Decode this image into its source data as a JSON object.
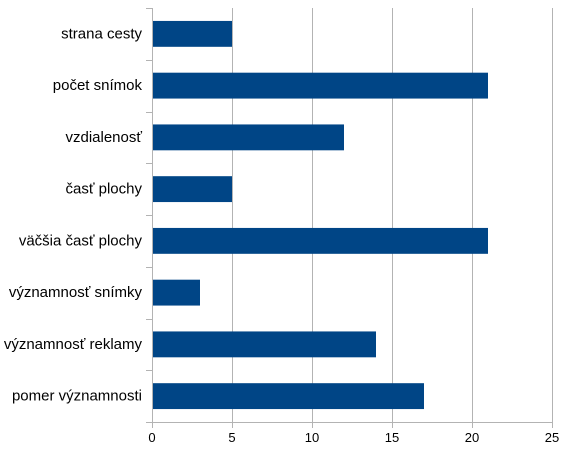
{
  "chart_data": {
    "type": "bar",
    "orientation": "horizontal",
    "categories": [
      "strana cesty",
      "počet snímok",
      "vzdialenosť",
      "časť plochy",
      "väčšia časť plochy",
      "významnosť snímky",
      "významnosť reklamy",
      "pomer významnosti"
    ],
    "values": [
      5,
      21,
      12,
      5,
      21,
      3,
      14,
      17
    ],
    "xlim": [
      0,
      25
    ],
    "xticks": [
      0,
      5,
      10,
      15,
      20,
      25
    ],
    "grid": true,
    "bar_color": "#004586",
    "grid_color": "#b3b3b3",
    "title": "",
    "xlabel": "",
    "ylabel": ""
  }
}
